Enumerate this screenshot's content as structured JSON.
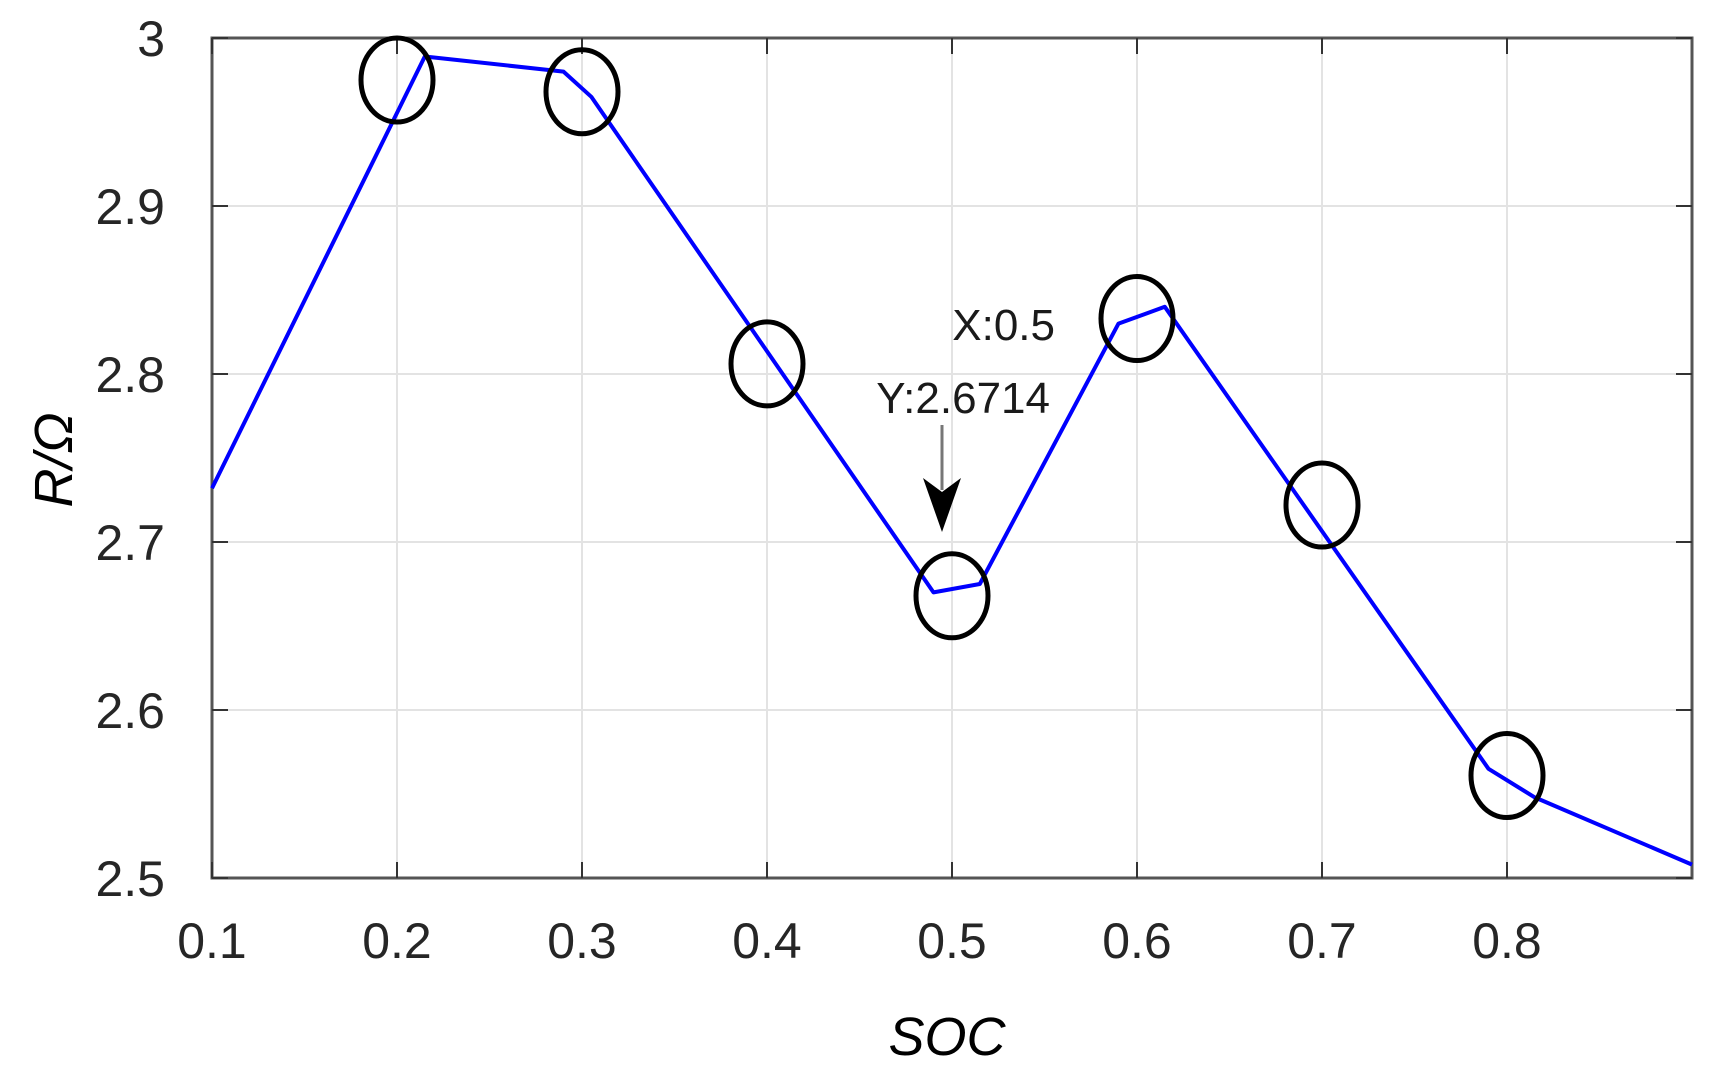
{
  "chart_data": {
    "type": "line",
    "title": "",
    "xlabel": "SOC",
    "ylabel": "R/Ω",
    "xlim": [
      0.1,
      0.9
    ],
    "ylim": [
      2.5,
      3.0
    ],
    "grid": true,
    "legend": null,
    "x_ticks": [
      0.1,
      0.2,
      0.3,
      0.4,
      0.5,
      0.6,
      0.7,
      0.8
    ],
    "x_tick_labels": [
      "0.1",
      "0.2",
      "0.3",
      "0.4",
      "0.5",
      "0.6",
      "0.7",
      "0.8"
    ],
    "y_ticks": [
      2.5,
      2.6,
      2.7,
      2.8,
      2.9,
      3.0
    ],
    "y_tick_labels": [
      "2.5",
      "2.6",
      "2.7",
      "2.8",
      "2.9",
      "3"
    ],
    "series": [
      {
        "name": "R",
        "color": "#0000ff",
        "x": [
          0.1,
          0.215,
          0.29,
          0.305,
          0.49,
          0.515,
          0.59,
          0.615,
          0.79,
          0.815,
          0.9
        ],
        "y": [
          2.732,
          2.989,
          2.98,
          2.965,
          2.67,
          2.675,
          2.83,
          2.84,
          2.565,
          2.548,
          2.508
        ]
      }
    ],
    "markers": {
      "shape": "ellipse",
      "color": "#000000",
      "points": [
        {
          "x": 0.2,
          "y": 2.975
        },
        {
          "x": 0.3,
          "y": 2.968
        },
        {
          "x": 0.4,
          "y": 2.806
        },
        {
          "x": 0.5,
          "y": 2.668
        },
        {
          "x": 0.6,
          "y": 2.833
        },
        {
          "x": 0.7,
          "y": 2.722
        },
        {
          "x": 0.8,
          "y": 2.561
        }
      ]
    },
    "annotations": [
      {
        "type": "datatip",
        "x_text": "X:0.5",
        "y_text": "Y:2.6714",
        "x": 0.5,
        "y": 2.6714
      }
    ]
  }
}
